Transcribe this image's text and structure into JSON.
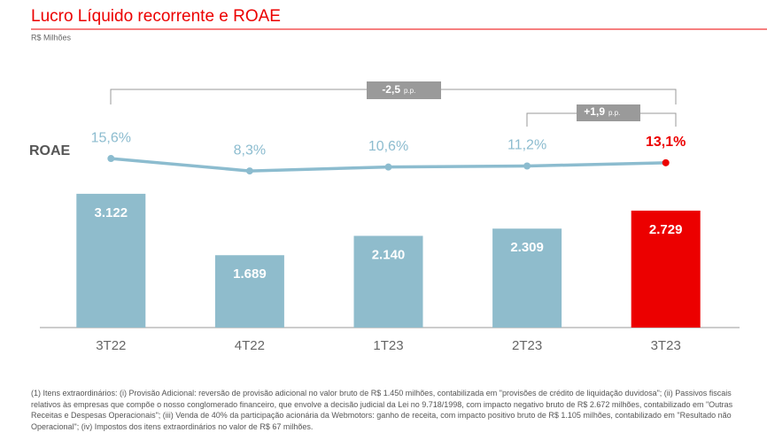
{
  "chart_data": {
    "type": "bar",
    "title": "Lucro Líquido recorrente e ROAE",
    "subtitle": "R$ Milhões",
    "categories": [
      "3T22",
      "4T22",
      "1T23",
      "2T23",
      "3T23"
    ],
    "series": [
      {
        "name": "ROAE",
        "type": "line",
        "color": "#8cbccf",
        "highlight_color": "#ec0000",
        "values": [
          15.6,
          8.3,
          10.6,
          11.2,
          13.1
        ],
        "value_labels": [
          "15,6%",
          "8,3%",
          "10,6%",
          "11,2%",
          "13,1%"
        ]
      },
      {
        "type": "bar",
        "colors": [
          "#8fbccc",
          "#8fbccc",
          "#8fbccc",
          "#8fbccc",
          "#ec0000"
        ],
        "values": [
          3122,
          1689,
          2140,
          2309,
          2729
        ],
        "value_labels": [
          "3.122",
          "1.689",
          "2.140",
          "2.309",
          "2.729"
        ]
      }
    ],
    "annotations": [
      {
        "text": "-2,5",
        "unit": "p.p."
      },
      {
        "text": "+1,9",
        "unit": "p.p."
      }
    ],
    "footnote": "(1) Itens extraordinários: (i) Provisão Adicional: reversão de provisão adicional no valor bruto de R$ 1.450 milhões, contabilizada em \"provisões de crédito de liquidação duvidosa\"; (ii) Passivos fiscais relativos às empresas que compõe o nosso conglomerado financeiro, que envolve a decisão judicial da Lei no 9.718/1998, com impacto negativo bruto de R$ 2.672 milhões, contabilizado em \"Outras Receitas e Despesas Operacionais\"; (iii) Venda de 40% da participação acionária da Webmotors: ganho de receita, com impacto positivo bruto de R$ 1.105 milhões, contabilizado em \"Resultado não Operacional\"; (iv) Impostos dos itens extraordinários no valor de R$ 67 milhões."
  }
}
